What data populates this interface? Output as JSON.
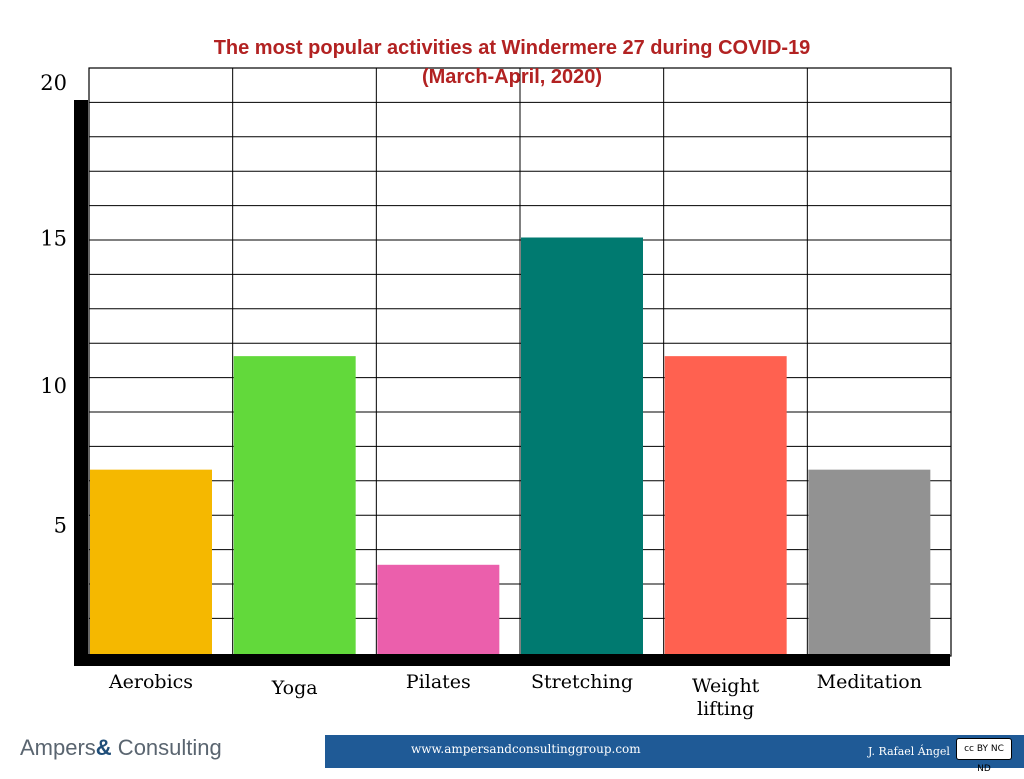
{
  "chart_data": {
    "type": "bar",
    "title": "The most popular activities at Windermere 27 during COVID-19",
    "subtitle": "(March-April, 2020)",
    "categories": [
      "Aerobics",
      "Yoga",
      "Pilates",
      "Stretching",
      "Weight lifting",
      "Meditation"
    ],
    "category_lines": [
      [
        "Aerobics"
      ],
      [
        "Yoga"
      ],
      [
        "Pilates"
      ],
      [
        "Stretching"
      ],
      [
        "Weight",
        "lifting"
      ],
      [
        "Meditation"
      ]
    ],
    "values": [
      7,
      11,
      3.5,
      15,
      11,
      7
    ],
    "colors": [
      "#f5b800",
      "#62d93b",
      "#eb5fac",
      "#007a70",
      "#ff6150",
      "#929292"
    ],
    "yticks": [
      5,
      10,
      15,
      20
    ],
    "ylim": [
      0,
      20
    ],
    "xlabel": "",
    "ylabel": "",
    "grid": true
  },
  "footer": {
    "logo_left": "Ampers",
    "logo_amp": "&",
    "logo_right": " Consulting",
    "url": "www.ampersandconsultinggroup.com",
    "author": "J. Rafael Ángel",
    "license": "cc BY NC ND",
    "bar_color": "#1f5a96"
  }
}
